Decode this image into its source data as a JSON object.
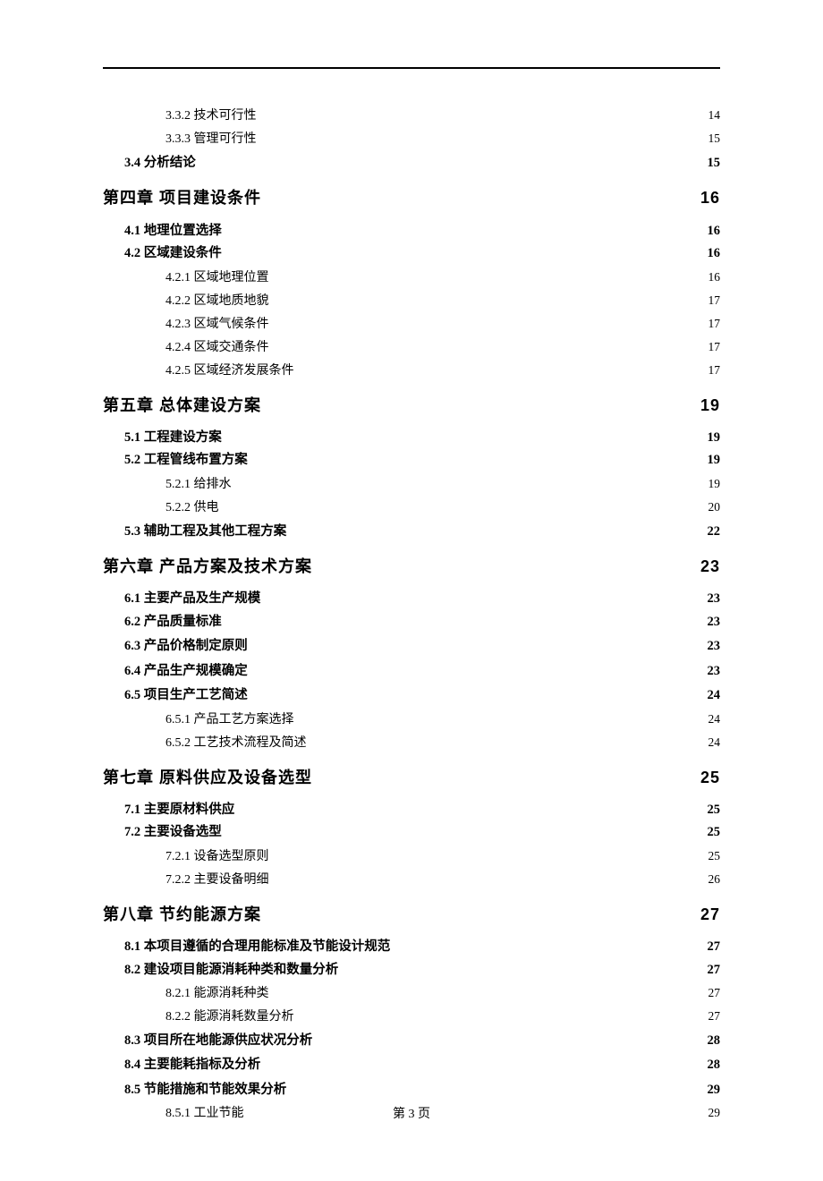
{
  "footer": "第 3 页",
  "toc": [
    {
      "level": "sub",
      "label": "3.3.2 技术可行性",
      "page": "14"
    },
    {
      "level": "sub",
      "label": "3.3.3 管理可行性",
      "page": "15"
    },
    {
      "level": "section",
      "label": "3.4 分析结论",
      "page": "15"
    },
    {
      "level": "chapter",
      "label": "第四章  项目建设条件",
      "page": "16"
    },
    {
      "level": "section",
      "label": "4.1 地理位置选择",
      "page": "16",
      "block": true
    },
    {
      "level": "section",
      "label": "4.2 区域建设条件",
      "page": "16"
    },
    {
      "level": "sub",
      "label": "4.2.1 区域地理位置",
      "page": "16"
    },
    {
      "level": "sub",
      "label": "4.2.2 区域地质地貌",
      "page": "17"
    },
    {
      "level": "sub",
      "label": "4.2.3 区域气候条件",
      "page": "17"
    },
    {
      "level": "sub",
      "label": "4.2.4 区域交通条件",
      "page": "17"
    },
    {
      "level": "sub",
      "label": "4.2.5 区域经济发展条件",
      "page": "17"
    },
    {
      "level": "chapter",
      "label": "第五章  总体建设方案",
      "page": "19"
    },
    {
      "level": "section",
      "label": "5.1 工程建设方案",
      "page": "19",
      "block": true
    },
    {
      "level": "section",
      "label": "5.2 工程管线布置方案",
      "page": "19"
    },
    {
      "level": "sub",
      "label": "5.2.1 给排水",
      "page": "19"
    },
    {
      "level": "sub",
      "label": "5.2.2 供电",
      "page": "20"
    },
    {
      "level": "section",
      "label": "5.3 辅助工程及其他工程方案",
      "page": "22"
    },
    {
      "level": "chapter",
      "label": "第六章  产品方案及技术方案",
      "page": "23"
    },
    {
      "level": "section",
      "label": "6.1 主要产品及生产规模",
      "page": "23",
      "block": true
    },
    {
      "level": "section",
      "label": "6.2 产品质量标准",
      "page": "23"
    },
    {
      "level": "section",
      "label": "6.3 产品价格制定原则",
      "page": "23"
    },
    {
      "level": "section",
      "label": "6.4 产品生产规模确定",
      "page": "23"
    },
    {
      "level": "section",
      "label": "6.5 项目生产工艺简述",
      "page": "24"
    },
    {
      "level": "sub",
      "label": "6.5.1 产品工艺方案选择",
      "page": "24"
    },
    {
      "level": "sub",
      "label": "6.5.2 工艺技术流程及简述",
      "page": "24"
    },
    {
      "level": "chapter",
      "label": "第七章  原料供应及设备选型",
      "page": "25"
    },
    {
      "level": "section",
      "label": "7.1 主要原材料供应",
      "page": "25",
      "block": true
    },
    {
      "level": "section",
      "label": "7.2 主要设备选型",
      "page": "25"
    },
    {
      "level": "sub",
      "label": "7.2.1 设备选型原则",
      "page": "25"
    },
    {
      "level": "sub",
      "label": "7.2.2 主要设备明细",
      "page": "26"
    },
    {
      "level": "chapter",
      "label": "第八章  节约能源方案",
      "page": "27"
    },
    {
      "level": "section",
      "label": "8.1 本项目遵循的合理用能标准及节能设计规范",
      "page": "27",
      "block": true
    },
    {
      "level": "section",
      "label": "8.2 建设项目能源消耗种类和数量分析",
      "page": "27"
    },
    {
      "level": "sub",
      "label": "8.2.1 能源消耗种类",
      "page": "27"
    },
    {
      "level": "sub",
      "label": "8.2.2 能源消耗数量分析",
      "page": "27"
    },
    {
      "level": "section",
      "label": "8.3 项目所在地能源供应状况分析",
      "page": "28"
    },
    {
      "level": "section",
      "label": "8.4 主要能耗指标及分析",
      "page": "28"
    },
    {
      "level": "section",
      "label": "8.5 节能措施和节能效果分析",
      "page": "29"
    },
    {
      "level": "sub",
      "label": "8.5.1 工业节能",
      "page": "29"
    }
  ]
}
